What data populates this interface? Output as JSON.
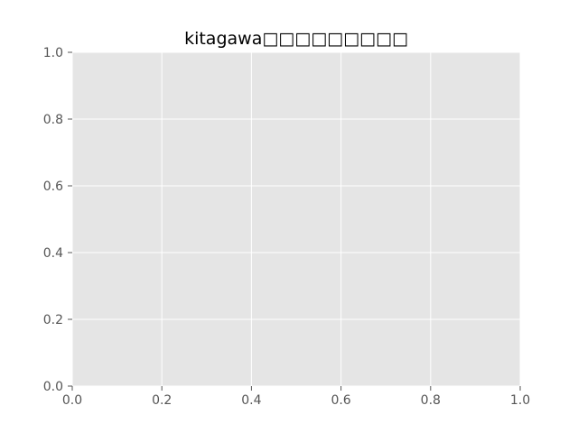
{
  "chart_data": {
    "type": "line",
    "title": "kitagawa□□□□□□□□□",
    "xlabel": "",
    "ylabel": "",
    "xlim": [
      0.0,
      1.0
    ],
    "ylim": [
      0.0,
      1.0
    ],
    "x_ticks": [
      0.0,
      0.2,
      0.4,
      0.6,
      0.8,
      1.0
    ],
    "y_ticks": [
      0.0,
      0.2,
      0.4,
      0.6,
      0.8,
      1.0
    ],
    "x_tick_labels": [
      "0.0",
      "0.2",
      "0.4",
      "0.6",
      "0.8",
      "1.0"
    ],
    "y_tick_labels": [
      "0.0",
      "0.2",
      "0.4",
      "0.6",
      "0.8",
      "1.0"
    ],
    "series": [],
    "grid": true,
    "colors": {
      "plot_background": "#e5e5e5",
      "grid": "#ffffff",
      "tick_label": "#555555",
      "title": "#000000"
    }
  }
}
